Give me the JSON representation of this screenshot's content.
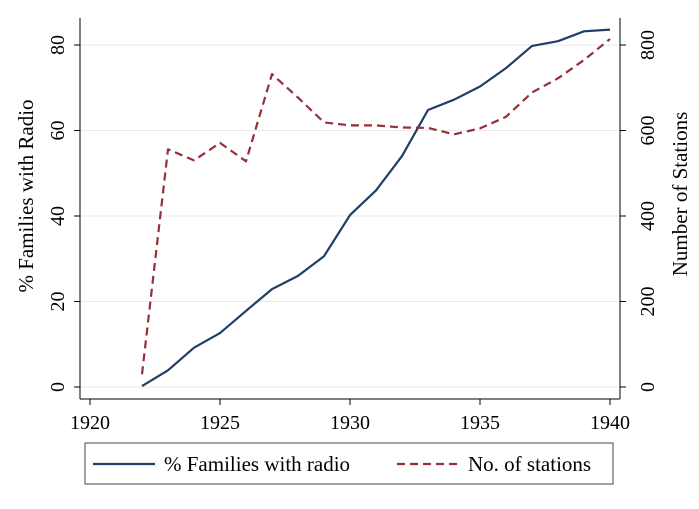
{
  "chart_data": {
    "type": "line",
    "xlim": [
      1920,
      1940
    ],
    "x_ticks": [
      "1920",
      "1925",
      "1930",
      "1935",
      "1940"
    ],
    "y_left": {
      "label": "% Families with Radio",
      "ylim": [
        0,
        85
      ],
      "ticks": [
        "0",
        "20",
        "40",
        "60",
        "80"
      ]
    },
    "y_right": {
      "label": "Number of Stations",
      "ylim": [
        0,
        850
      ],
      "ticks": [
        "0",
        "200",
        "400",
        "600",
        "800"
      ]
    },
    "grid": "horizontal",
    "legend": "bottom",
    "series": [
      {
        "name": "% Families with radio",
        "axis": "left",
        "color": "#1f3f66",
        "style": "solid",
        "x": [
          1922,
          1923,
          1924,
          1925,
          1926,
          1927,
          1928,
          1929,
          1930,
          1931,
          1932,
          1933,
          1934,
          1935,
          1936,
          1937,
          1938,
          1939,
          1940
        ],
        "values": [
          0.2,
          3.9,
          9.2,
          12.6,
          17.8,
          22.9,
          26.0,
          30.6,
          40.2,
          46.0,
          54.0,
          64.8,
          67.2,
          70.3,
          74.6,
          79.8,
          80.9,
          83.2,
          83.6
        ]
      },
      {
        "name": "No. of stations",
        "axis": "right",
        "color": "#943039",
        "style": "dashed",
        "x": [
          1922,
          1923,
          1924,
          1925,
          1926,
          1927,
          1928,
          1929,
          1930,
          1931,
          1932,
          1933,
          1934,
          1935,
          1936,
          1937,
          1938,
          1939,
          1940
        ],
        "values": [
          30,
          556,
          530,
          571,
          528,
          732,
          677,
          619,
          612,
          612,
          607,
          606,
          591,
          605,
          632,
          689,
          722,
          765,
          814
        ]
      }
    ]
  }
}
